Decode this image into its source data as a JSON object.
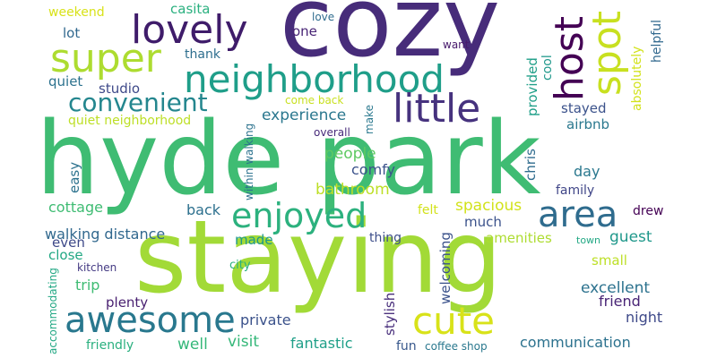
{
  "words": [
    {
      "text": "hyde park",
      "color": "#3fbc73"
    },
    {
      "text": "staying",
      "color": "#a2da37"
    },
    {
      "text": "cozy",
      "color": "#472c7a"
    },
    {
      "text": "neighborhood",
      "color": "#1f9e89"
    },
    {
      "text": "lovely",
      "color": "#3f1c6a"
    },
    {
      "text": "super",
      "color": "#addc30"
    },
    {
      "text": "host",
      "color": "#440154"
    },
    {
      "text": "spot",
      "color": "#c8e020"
    },
    {
      "text": "little",
      "color": "#46327e"
    },
    {
      "text": "convenient",
      "color": "#24868e"
    },
    {
      "text": "enjoyed",
      "color": "#2cb17e"
    },
    {
      "text": "area",
      "color": "#2f6c8e"
    },
    {
      "text": "awesome",
      "color": "#29788e"
    },
    {
      "text": "cute",
      "color": "#d8e219"
    },
    {
      "text": "experience",
      "color": "#2a778e"
    },
    {
      "text": "people",
      "color": "#5ec962"
    },
    {
      "text": "comfy",
      "color": "#3b528b"
    },
    {
      "text": "bathroom",
      "color": "#bddf26"
    },
    {
      "text": "spacious",
      "color": "#d2e21b"
    },
    {
      "text": "walking distance",
      "color": "#31688e"
    },
    {
      "text": "amenities",
      "color": "#addc30"
    },
    {
      "text": "guest",
      "color": "#1f988b"
    },
    {
      "text": "excellent",
      "color": "#2c728e"
    },
    {
      "text": "friend",
      "color": "#482475"
    },
    {
      "text": "night",
      "color": "#3e4989"
    },
    {
      "text": "private",
      "color": "#3b528b"
    },
    {
      "text": "fantastic",
      "color": "#1f9f88"
    },
    {
      "text": "visit",
      "color": "#35b779"
    },
    {
      "text": "well",
      "color": "#35b779"
    },
    {
      "text": "communication",
      "color": "#2c728e"
    },
    {
      "text": "stylish",
      "color": "#472d7b"
    },
    {
      "text": "welcoming",
      "color": "#3b528b"
    },
    {
      "text": "fun",
      "color": "#38588c"
    },
    {
      "text": "coffee shop",
      "color": "#2a788e"
    },
    {
      "text": "friendly",
      "color": "#2ab07f"
    },
    {
      "text": "accommodating",
      "color": "#22a884"
    },
    {
      "text": "kitchen",
      "color": "#443a83"
    },
    {
      "text": "plenty",
      "color": "#481f70"
    },
    {
      "text": "trip",
      "color": "#3fbc73"
    },
    {
      "text": "city",
      "color": "#2ab07f"
    },
    {
      "text": "close",
      "color": "#22a884"
    },
    {
      "text": "even",
      "color": "#3e4989"
    },
    {
      "text": "cottage",
      "color": "#3fbc73"
    },
    {
      "text": "easy",
      "color": "#2c728e"
    },
    {
      "text": "back",
      "color": "#2d708e"
    },
    {
      "text": "made",
      "color": "#1f998a"
    },
    {
      "text": "thing",
      "color": "#3d4e8a"
    },
    {
      "text": "much",
      "color": "#3b528b"
    },
    {
      "text": "felt",
      "color": "#d2e21b"
    },
    {
      "text": "small",
      "color": "#bddf26"
    },
    {
      "text": "town",
      "color": "#22a884"
    },
    {
      "text": "drew",
      "color": "#440154"
    },
    {
      "text": "family",
      "color": "#404688"
    },
    {
      "text": "day",
      "color": "#2a788e"
    },
    {
      "text": "chris",
      "color": "#2f6c8e"
    },
    {
      "text": "stayed",
      "color": "#3b528b"
    },
    {
      "text": "airbnb",
      "color": "#2a788e"
    },
    {
      "text": "provided",
      "color": "#1f9f88"
    },
    {
      "text": "cool",
      "color": "#1f988b"
    },
    {
      "text": "absolutely",
      "color": "#d2e21b"
    },
    {
      "text": "helpful",
      "color": "#31688e"
    },
    {
      "text": "quiet neighborhood",
      "color": "#bddf26"
    },
    {
      "text": "quiet",
      "color": "#2c728e"
    },
    {
      "text": "studio",
      "color": "#3e4989"
    },
    {
      "text": "thank",
      "color": "#2e6e8e"
    },
    {
      "text": "lot",
      "color": "#31688e"
    },
    {
      "text": "one",
      "color": "#482475"
    },
    {
      "text": "love",
      "color": "#2f6c8e"
    },
    {
      "text": "want",
      "color": "#481a6c"
    },
    {
      "text": "come back",
      "color": "#c8e020"
    },
    {
      "text": "overall",
      "color": "#472a7a"
    },
    {
      "text": "make",
      "color": "#2a788e"
    },
    {
      "text": "within walking",
      "color": "#2c728e"
    },
    {
      "text": "weekend",
      "color": "#d8e219"
    },
    {
      "text": "casita",
      "color": "#2ab07f"
    }
  ]
}
